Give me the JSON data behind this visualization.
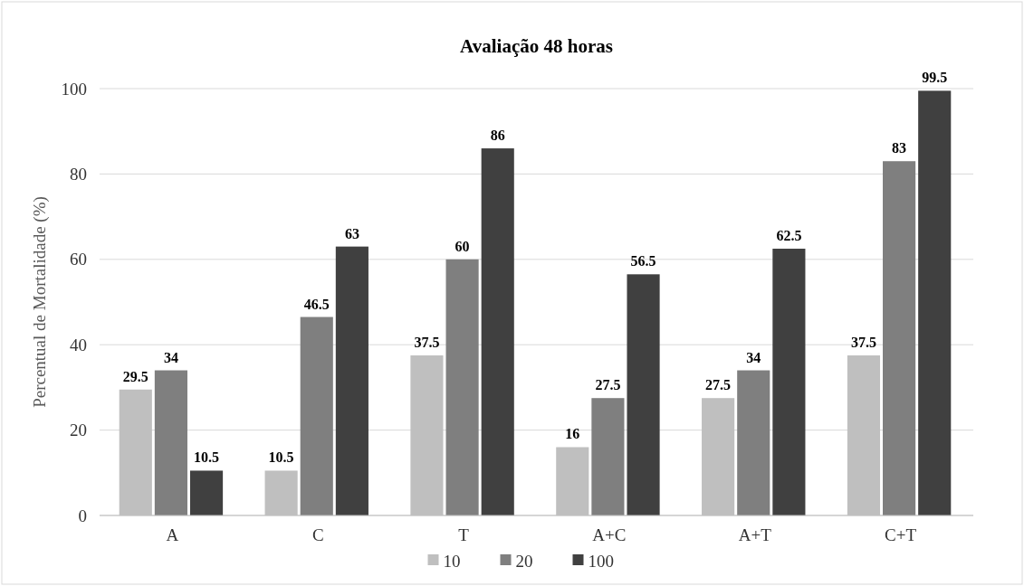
{
  "chart_data": {
    "type": "bar",
    "title": "Avaliação 48 horas",
    "ylabel": "Percentual de Mortalidade (%)",
    "categories": [
      "A",
      "C",
      "T",
      "A+C",
      "A+T",
      "C+T"
    ],
    "series": [
      {
        "name": "10",
        "color": "#bfbfbf",
        "values": [
          29.5,
          10.5,
          37.5,
          16,
          27.5,
          37.5
        ]
      },
      {
        "name": "20",
        "color": "#7f7f7f",
        "values": [
          34,
          46.5,
          60,
          27.5,
          34,
          83
        ]
      },
      {
        "name": "100",
        "color": "#404040",
        "values": [
          10.5,
          63,
          86,
          56.5,
          62.5,
          99.5
        ]
      }
    ],
    "ylim": [
      0,
      100
    ],
    "yticks": [
      0,
      20,
      40,
      60,
      80,
      100
    ],
    "grid": "y",
    "legend": "bottom",
    "data_labels": true
  }
}
